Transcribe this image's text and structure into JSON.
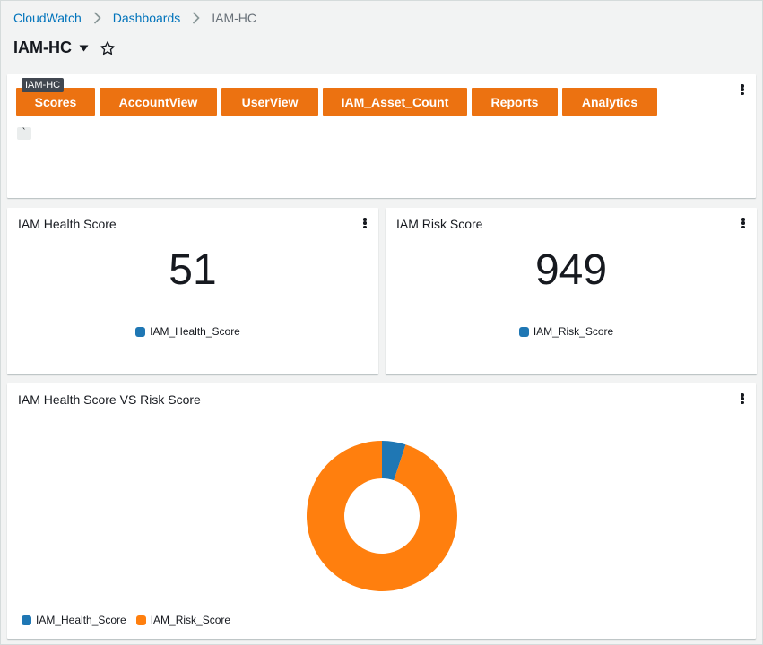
{
  "breadcrumb": {
    "items": [
      "CloudWatch",
      "Dashboards"
    ],
    "current": "IAM-HC"
  },
  "header": {
    "title": "IAM-HC",
    "caret_icon": "caret-down-icon",
    "star_icon": "star-outline-icon"
  },
  "text_widget": {
    "tooltip": "IAM-HC",
    "buttons": [
      "Scores",
      "AccountView",
      "UserView",
      "IAM_Asset_Count",
      "Reports",
      "Analytics"
    ],
    "code_snippet": "`",
    "button_color": "#ec7211"
  },
  "health_widget": {
    "title": "IAM Health Score",
    "value": "51",
    "legend": "IAM_Health_Score",
    "color": "#1f77b4"
  },
  "risk_widget": {
    "title": "IAM Risk Score",
    "value": "949",
    "legend": "IAM_Risk_Score",
    "color": "#1f77b4"
  },
  "pie_widget": {
    "title": "IAM Health Score VS Risk Score"
  },
  "chart_data": {
    "type": "pie",
    "donut": true,
    "title": "IAM Health Score VS Risk Score",
    "categories": [
      "IAM_Health_Score",
      "IAM_Risk_Score"
    ],
    "values": [
      51,
      949
    ],
    "colors": [
      "#1f77b4",
      "#ff7f0e"
    ],
    "legend_position": "bottom-left"
  }
}
